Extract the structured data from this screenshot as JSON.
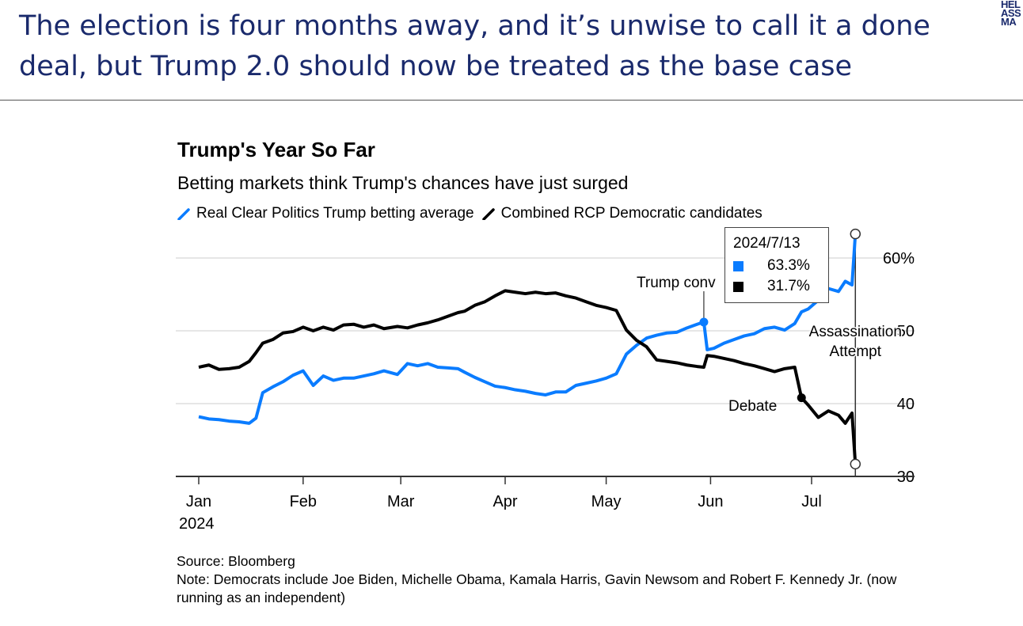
{
  "slide": {
    "title": "The election is four months away, and it’s unwise to call it a done deal, but Trump 2.0 should now be treated as the base case",
    "logo_lines": [
      "HEL",
      "ASS",
      "MA"
    ]
  },
  "colors": {
    "trump": "#0a7cff",
    "democrats": "#000000",
    "grid": "#e6e6e6",
    "title": "#1a2a6c"
  },
  "chart_data": {
    "type": "line",
    "title": "Trump's Year So Far",
    "subtitle": "Betting markets think Trump's chances have just surged",
    "xlabel": "",
    "ylabel": "",
    "ylim": [
      30,
      63
    ],
    "y_ticks": [
      30,
      40,
      50,
      60
    ],
    "y_tick_labels": [
      "30",
      "40",
      "50",
      "60%"
    ],
    "grid": true,
    "legend_position": "top",
    "x_tick_labels": [
      "Jan",
      "Feb",
      "Mar",
      "Apr",
      "May",
      "Jun",
      "Jul"
    ],
    "x_year_label": "2024",
    "x_day_range": [
      1,
      196
    ],
    "x_tick_days": [
      1,
      32,
      61,
      92,
      122,
      153,
      183
    ],
    "series": [
      {
        "name": "Real Clear Politics Trump betting average",
        "color": "#0a7cff",
        "x_days": [
          1,
          4,
          7,
          10,
          13,
          16,
          18,
          20,
          23,
          26,
          29,
          32,
          35,
          38,
          41,
          44,
          47,
          50,
          53,
          56,
          60,
          63,
          66,
          69,
          72,
          75,
          78,
          80,
          83,
          86,
          89,
          92,
          95,
          98,
          101,
          104,
          107,
          110,
          113,
          116,
          119,
          122,
          125,
          128,
          131,
          134,
          137,
          140,
          143,
          146,
          149,
          151,
          152,
          154,
          157,
          160,
          163,
          166,
          169,
          172,
          175,
          178,
          180,
          182,
          185,
          188,
          191,
          193,
          195,
          196
        ],
        "values": [
          38.2,
          37.9,
          37.8,
          37.6,
          37.5,
          37.3,
          38.0,
          41.5,
          42.3,
          43.0,
          43.9,
          44.5,
          42.5,
          43.8,
          43.2,
          43.5,
          43.5,
          43.8,
          44.1,
          44.5,
          44.0,
          45.5,
          45.2,
          45.5,
          45.0,
          44.9,
          44.8,
          44.3,
          43.6,
          43.0,
          42.4,
          42.2,
          41.9,
          41.7,
          41.4,
          41.2,
          41.6,
          41.6,
          42.5,
          42.8,
          43.1,
          43.5,
          44.1,
          46.8,
          48.0,
          49.0,
          49.4,
          49.7,
          49.8,
          50.4,
          50.9,
          51.2,
          47.4,
          47.6,
          48.3,
          48.8,
          49.3,
          49.6,
          50.3,
          50.5,
          50.1,
          51.0,
          52.6,
          53.0,
          54.2,
          55.8,
          55.4,
          56.8,
          56.3,
          63.3
        ]
      },
      {
        "name": "Combined RCP Democratic candidates",
        "color": "#000000",
        "x_days": [
          1,
          4,
          7,
          10,
          13,
          16,
          18,
          20,
          23,
          26,
          29,
          32,
          35,
          38,
          41,
          44,
          47,
          50,
          53,
          56,
          60,
          63,
          66,
          69,
          72,
          75,
          78,
          80,
          83,
          86,
          89,
          92,
          95,
          98,
          101,
          104,
          107,
          110,
          113,
          116,
          119,
          122,
          125,
          128,
          131,
          134,
          137,
          140,
          143,
          146,
          149,
          151,
          152,
          154,
          157,
          160,
          163,
          166,
          169,
          172,
          175,
          178,
          180,
          182,
          185,
          188,
          191,
          193,
          195,
          196
        ],
        "values": [
          45.0,
          45.3,
          44.7,
          44.8,
          45.0,
          45.8,
          47.0,
          48.3,
          48.8,
          49.7,
          49.9,
          50.5,
          50.0,
          50.5,
          50.1,
          50.8,
          50.9,
          50.5,
          50.8,
          50.3,
          50.6,
          50.4,
          50.8,
          51.1,
          51.5,
          52.0,
          52.5,
          52.7,
          53.5,
          54.0,
          54.8,
          55.5,
          55.3,
          55.1,
          55.3,
          55.1,
          55.2,
          54.8,
          54.5,
          54.0,
          53.5,
          53.2,
          52.8,
          50.1,
          48.7,
          47.8,
          46.0,
          45.8,
          45.6,
          45.3,
          45.1,
          45.0,
          46.6,
          46.5,
          46.2,
          45.9,
          45.5,
          45.2,
          44.8,
          44.4,
          44.8,
          45.0,
          40.8,
          39.8,
          38.1,
          39.0,
          38.4,
          37.3,
          38.7,
          31.7
        ]
      }
    ],
    "annotations": [
      {
        "label": "Trump conv",
        "day": 151,
        "series": "Real Clear Politics Trump betting average"
      },
      {
        "label": "Debate",
        "day": 180,
        "series": "Combined RCP Democratic candidates"
      },
      {
        "label": "Assassination\nAttempt",
        "day": 196
      }
    ],
    "tooltip": {
      "date": "2024/7/13",
      "trump_value": "63.3%",
      "dem_value": "31.7%"
    }
  },
  "footer": {
    "source": "Source: Bloomberg",
    "note": "Note: Democrats include Joe Biden, Michelle Obama, Kamala Harris, Gavin Newsom and Robert F. Kennedy Jr. (now running as an independent)"
  }
}
